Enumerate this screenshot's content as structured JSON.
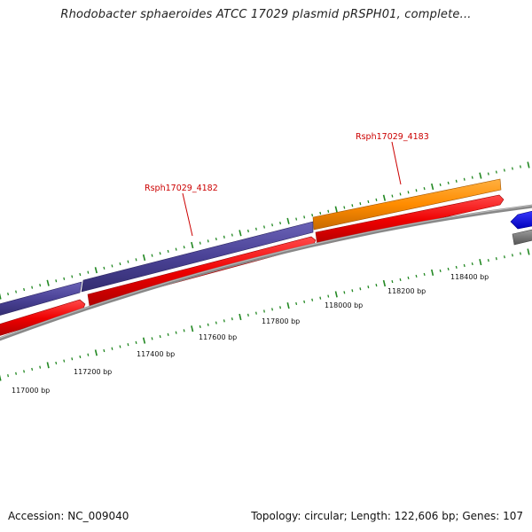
{
  "header": {
    "title": "Rhodobacter sphaeroides ATCC 17029 plasmid pRSPH01, complete..."
  },
  "footer": {
    "accession": "Accession: NC_009040",
    "summary": "Topology: circular; Length: 122,606 bp; Genes: 107"
  },
  "map": {
    "colors": {
      "forward_cds": "#ee0000",
      "gene_purple": "#4a4296",
      "gene_orange": "#ff8c00",
      "gene_blue": "#0000ee",
      "backbone": "#888888",
      "ticks": "#228822",
      "label_text": "#cc0000"
    },
    "position_labels": [
      "117000 bp",
      "117200 bp",
      "117400 bp",
      "117600 bp",
      "117800 bp",
      "118000 bp",
      "118200 bp",
      "118400 bp"
    ],
    "gene_labels": [
      "Rsph17029_4182",
      "Rsph17029_4183"
    ]
  }
}
